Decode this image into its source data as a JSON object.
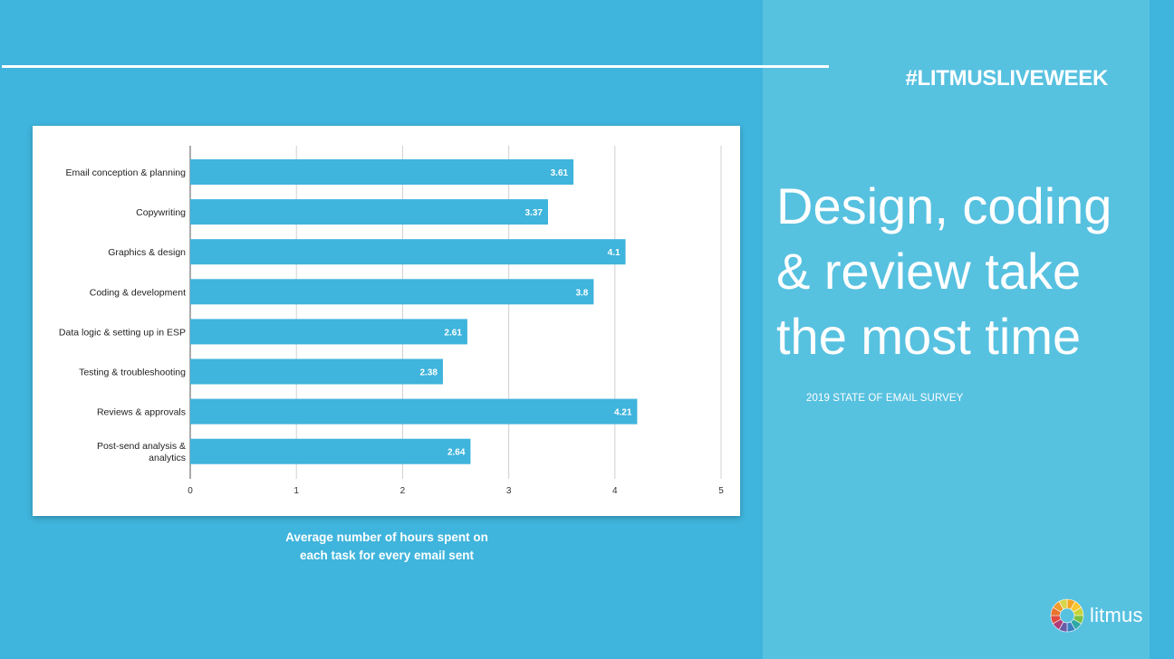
{
  "slide": {
    "hashtag": "#LITMUSLIVEWEEK",
    "headline_lines": [
      "Design, coding",
      "& review take",
      "the most time"
    ],
    "source": "2019 STATE OF EMAIL SURVEY",
    "caption_lines": [
      "Average number of hours spent on",
      "each task for every email sent"
    ],
    "logo_text": "litmus",
    "colors": {
      "background": "#3fb4dc",
      "panel": "#57c1e0",
      "bar": "#3fb4dc",
      "text": "#ffffff"
    }
  },
  "chart_data": {
    "type": "bar",
    "orientation": "horizontal",
    "categories": [
      [
        "Email conception & planning"
      ],
      [
        "Copywriting"
      ],
      [
        "Graphics & design"
      ],
      [
        "Coding & development"
      ],
      [
        "Data logic & setting up in ESP"
      ],
      [
        "Testing & troubleshooting"
      ],
      [
        "Reviews & approvals"
      ],
      [
        "Post-send analysis &",
        "analytics"
      ]
    ],
    "values": [
      3.61,
      3.37,
      4.1,
      3.8,
      2.61,
      2.38,
      4.21,
      2.64
    ],
    "value_labels": [
      "3.61",
      "3.37",
      "4.1",
      "3.8",
      "2.61",
      "2.38",
      "4.21",
      "2.64"
    ],
    "xlim": [
      0,
      5
    ],
    "xticks": [
      0,
      1,
      2,
      3,
      4,
      5
    ],
    "grid": true,
    "bar_color": "#3fb4dc",
    "title": "",
    "xlabel": "",
    "ylabel": ""
  }
}
